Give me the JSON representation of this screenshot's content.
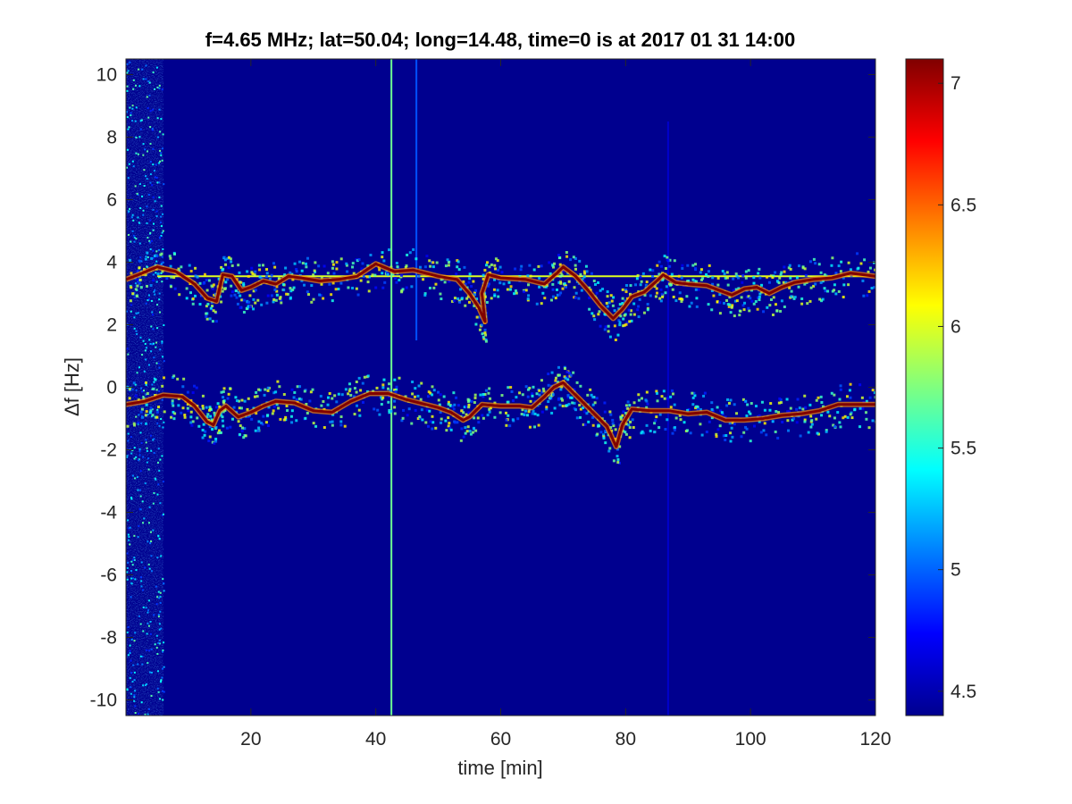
{
  "chart_data": {
    "type": "heatmap",
    "title": "f=4.65 MHz;  lat=50.04; long=14.48, time=0 is at 2017 01 31 14:00",
    "xlabel": "time [min]",
    "ylabel": "Δf [Hz]",
    "xlim": [
      0,
      120
    ],
    "ylim": [
      -10.5,
      10.5
    ],
    "x_ticks": [
      20,
      40,
      60,
      80,
      100,
      120
    ],
    "y_ticks": [
      -10,
      -8,
      -6,
      -4,
      -2,
      0,
      2,
      4,
      6,
      8,
      10
    ],
    "colorbar": {
      "colormap": "jet",
      "range": [
        4.4,
        7.1
      ],
      "ticks": [
        4.5,
        5,
        5.5,
        6,
        6.5,
        7
      ]
    },
    "background_level": 4.4,
    "traces": [
      {
        "peak_level": 7.1,
        "points": [
          [
            0,
            3.45
          ],
          [
            2,
            3.6
          ],
          [
            5,
            3.85
          ],
          [
            8,
            3.7
          ],
          [
            11,
            3.3
          ],
          [
            13,
            2.85
          ],
          [
            14.5,
            2.75
          ],
          [
            15.5,
            3.6
          ],
          [
            17,
            3.55
          ],
          [
            18.5,
            3.1
          ],
          [
            20,
            3.2
          ],
          [
            22,
            3.4
          ],
          [
            24,
            3.3
          ],
          [
            26,
            3.55
          ],
          [
            28,
            3.5
          ],
          [
            31,
            3.4
          ],
          [
            34,
            3.45
          ],
          [
            37,
            3.55
          ],
          [
            40,
            3.95
          ],
          [
            43,
            3.7
          ],
          [
            46,
            3.75
          ],
          [
            50,
            3.55
          ],
          [
            53,
            3.45
          ],
          [
            55,
            3.0
          ],
          [
            56.5,
            2.55
          ],
          [
            57.5,
            2.1
          ],
          [
            57,
            3.0
          ],
          [
            58,
            3.6
          ],
          [
            60,
            3.5
          ],
          [
            64,
            3.45
          ],
          [
            67,
            3.3
          ],
          [
            69,
            3.65
          ],
          [
            70,
            3.85
          ],
          [
            72,
            3.55
          ],
          [
            74,
            3.1
          ],
          [
            76,
            2.6
          ],
          [
            78,
            2.2
          ],
          [
            79.5,
            2.5
          ],
          [
            81,
            2.9
          ],
          [
            83,
            3.05
          ],
          [
            85,
            3.4
          ],
          [
            86,
            3.6
          ],
          [
            88,
            3.35
          ],
          [
            90,
            3.3
          ],
          [
            93,
            3.25
          ],
          [
            95,
            3.1
          ],
          [
            97,
            2.95
          ],
          [
            99,
            3.15
          ],
          [
            101,
            3.2
          ],
          [
            103,
            3.0
          ],
          [
            105,
            3.2
          ],
          [
            107,
            3.35
          ],
          [
            110,
            3.45
          ],
          [
            113,
            3.5
          ],
          [
            116,
            3.65
          ],
          [
            120,
            3.55
          ]
        ]
      },
      {
        "peak_level": 7.1,
        "points": [
          [
            0,
            -0.55
          ],
          [
            3,
            -0.45
          ],
          [
            6,
            -0.25
          ],
          [
            9,
            -0.3
          ],
          [
            11,
            -0.6
          ],
          [
            13,
            -1.1
          ],
          [
            14,
            -1.2
          ],
          [
            15,
            -0.75
          ],
          [
            16,
            -0.6
          ],
          [
            18,
            -0.95
          ],
          [
            20,
            -0.8
          ],
          [
            22,
            -0.6
          ],
          [
            24,
            -0.45
          ],
          [
            27,
            -0.5
          ],
          [
            30,
            -0.75
          ],
          [
            33,
            -0.8
          ],
          [
            36,
            -0.45
          ],
          [
            39,
            -0.2
          ],
          [
            42,
            -0.2
          ],
          [
            45,
            -0.4
          ],
          [
            48,
            -0.55
          ],
          [
            50,
            -0.65
          ],
          [
            52,
            -0.8
          ],
          [
            54,
            -1.05
          ],
          [
            55,
            -0.95
          ],
          [
            57,
            -0.55
          ],
          [
            60,
            -0.6
          ],
          [
            63,
            -0.6
          ],
          [
            65,
            -0.65
          ],
          [
            67,
            -0.3
          ],
          [
            68.5,
            0.0
          ],
          [
            70,
            0.15
          ],
          [
            71,
            -0.05
          ],
          [
            73,
            -0.45
          ],
          [
            75,
            -0.85
          ],
          [
            77,
            -1.25
          ],
          [
            78.5,
            -1.9
          ],
          [
            79.5,
            -1.2
          ],
          [
            81,
            -0.7
          ],
          [
            84,
            -0.75
          ],
          [
            87,
            -0.75
          ],
          [
            90,
            -0.85
          ],
          [
            93,
            -0.8
          ],
          [
            96,
            -1.05
          ],
          [
            99,
            -1.05
          ],
          [
            102,
            -1.0
          ],
          [
            105,
            -0.9
          ],
          [
            108,
            -0.85
          ],
          [
            111,
            -0.75
          ],
          [
            114,
            -0.55
          ],
          [
            117,
            -0.55
          ],
          [
            120,
            -0.55
          ]
        ]
      }
    ],
    "constant_lines": [
      {
        "axis": "y",
        "value": 3.55,
        "x_range": [
          5,
          120
        ],
        "level": 6.0
      },
      {
        "axis": "x",
        "value": 42.5,
        "y_range": [
          -10.5,
          10.5
        ],
        "level": 5.7
      },
      {
        "axis": "x",
        "value": 46.5,
        "y_range": [
          1.5,
          10.5
        ],
        "level": 4.95
      },
      {
        "axis": "x",
        "value": 86.8,
        "y_range": [
          -10.5,
          8.5
        ],
        "level": 4.6
      }
    ],
    "noise_strip": {
      "x_range": [
        0,
        6
      ],
      "level": 5.0
    }
  }
}
